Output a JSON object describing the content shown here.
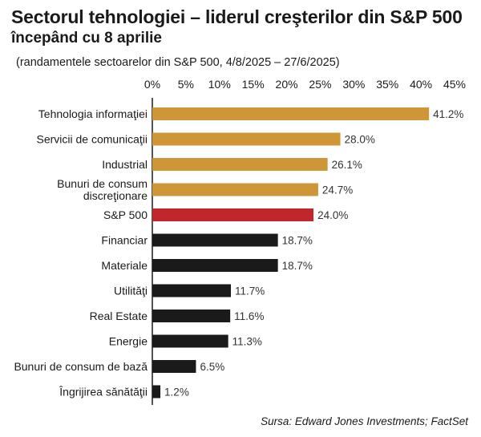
{
  "header": {
    "title": "Sectorul tehnologiei – liderul creşterilor din S&P 500",
    "subtitle": "începând cu 8 aprilie",
    "note": "(randamentele sectoarelor din S&P 500, 4/8/2025 – 27/6/2025)"
  },
  "footer": {
    "source": "Sursa: Edward Jones Investments; FactSet"
  },
  "chart_data": {
    "type": "bar",
    "orientation": "horizontal",
    "title": "Sectorul tehnologiei – liderul creşterilor din S&P 500",
    "subtitle": "începând cu 8 aprilie",
    "xlabel": "",
    "ylabel": "",
    "xlim": [
      0,
      45
    ],
    "ticks": [
      0,
      5,
      10,
      15,
      20,
      25,
      30,
      35,
      40,
      45
    ],
    "tick_labels": [
      "0%",
      "5%",
      "10%",
      "15%",
      "20%",
      "25%",
      "30%",
      "35%",
      "40%",
      "45%"
    ],
    "axis_position": "top",
    "grid": false,
    "categories": [
      [
        "Tehnologia informaţiei"
      ],
      [
        "Servicii de comunicaţii"
      ],
      [
        "Industrial"
      ],
      [
        "Bunuri de consum",
        "discreţionare"
      ],
      [
        "S&P 500"
      ],
      [
        "Financiar"
      ],
      [
        "Materiale"
      ],
      [
        "Utilităţi"
      ],
      [
        "Real Estate"
      ],
      [
        "Energie"
      ],
      [
        "Bunuri de consum de bază"
      ],
      [
        "Îngrijirea sănătăţii"
      ]
    ],
    "values": [
      41.2,
      28.0,
      26.1,
      24.7,
      24.0,
      18.7,
      18.7,
      11.7,
      11.6,
      11.3,
      6.5,
      1.2
    ],
    "value_labels": [
      "41.2%",
      "28.0%",
      "26.1%",
      "24.7%",
      "24.0%",
      "18.7%",
      "18.7%",
      "11.7%",
      "11.6%",
      "11.3%",
      "6.5%",
      "1.2%"
    ],
    "bar_colors": [
      "#cf9638",
      "#cf9638",
      "#cf9638",
      "#cf9638",
      "#c0272d",
      "#1a1a1a",
      "#1a1a1a",
      "#1a1a1a",
      "#1a1a1a",
      "#1a1a1a",
      "#1a1a1a",
      "#1a1a1a"
    ]
  }
}
